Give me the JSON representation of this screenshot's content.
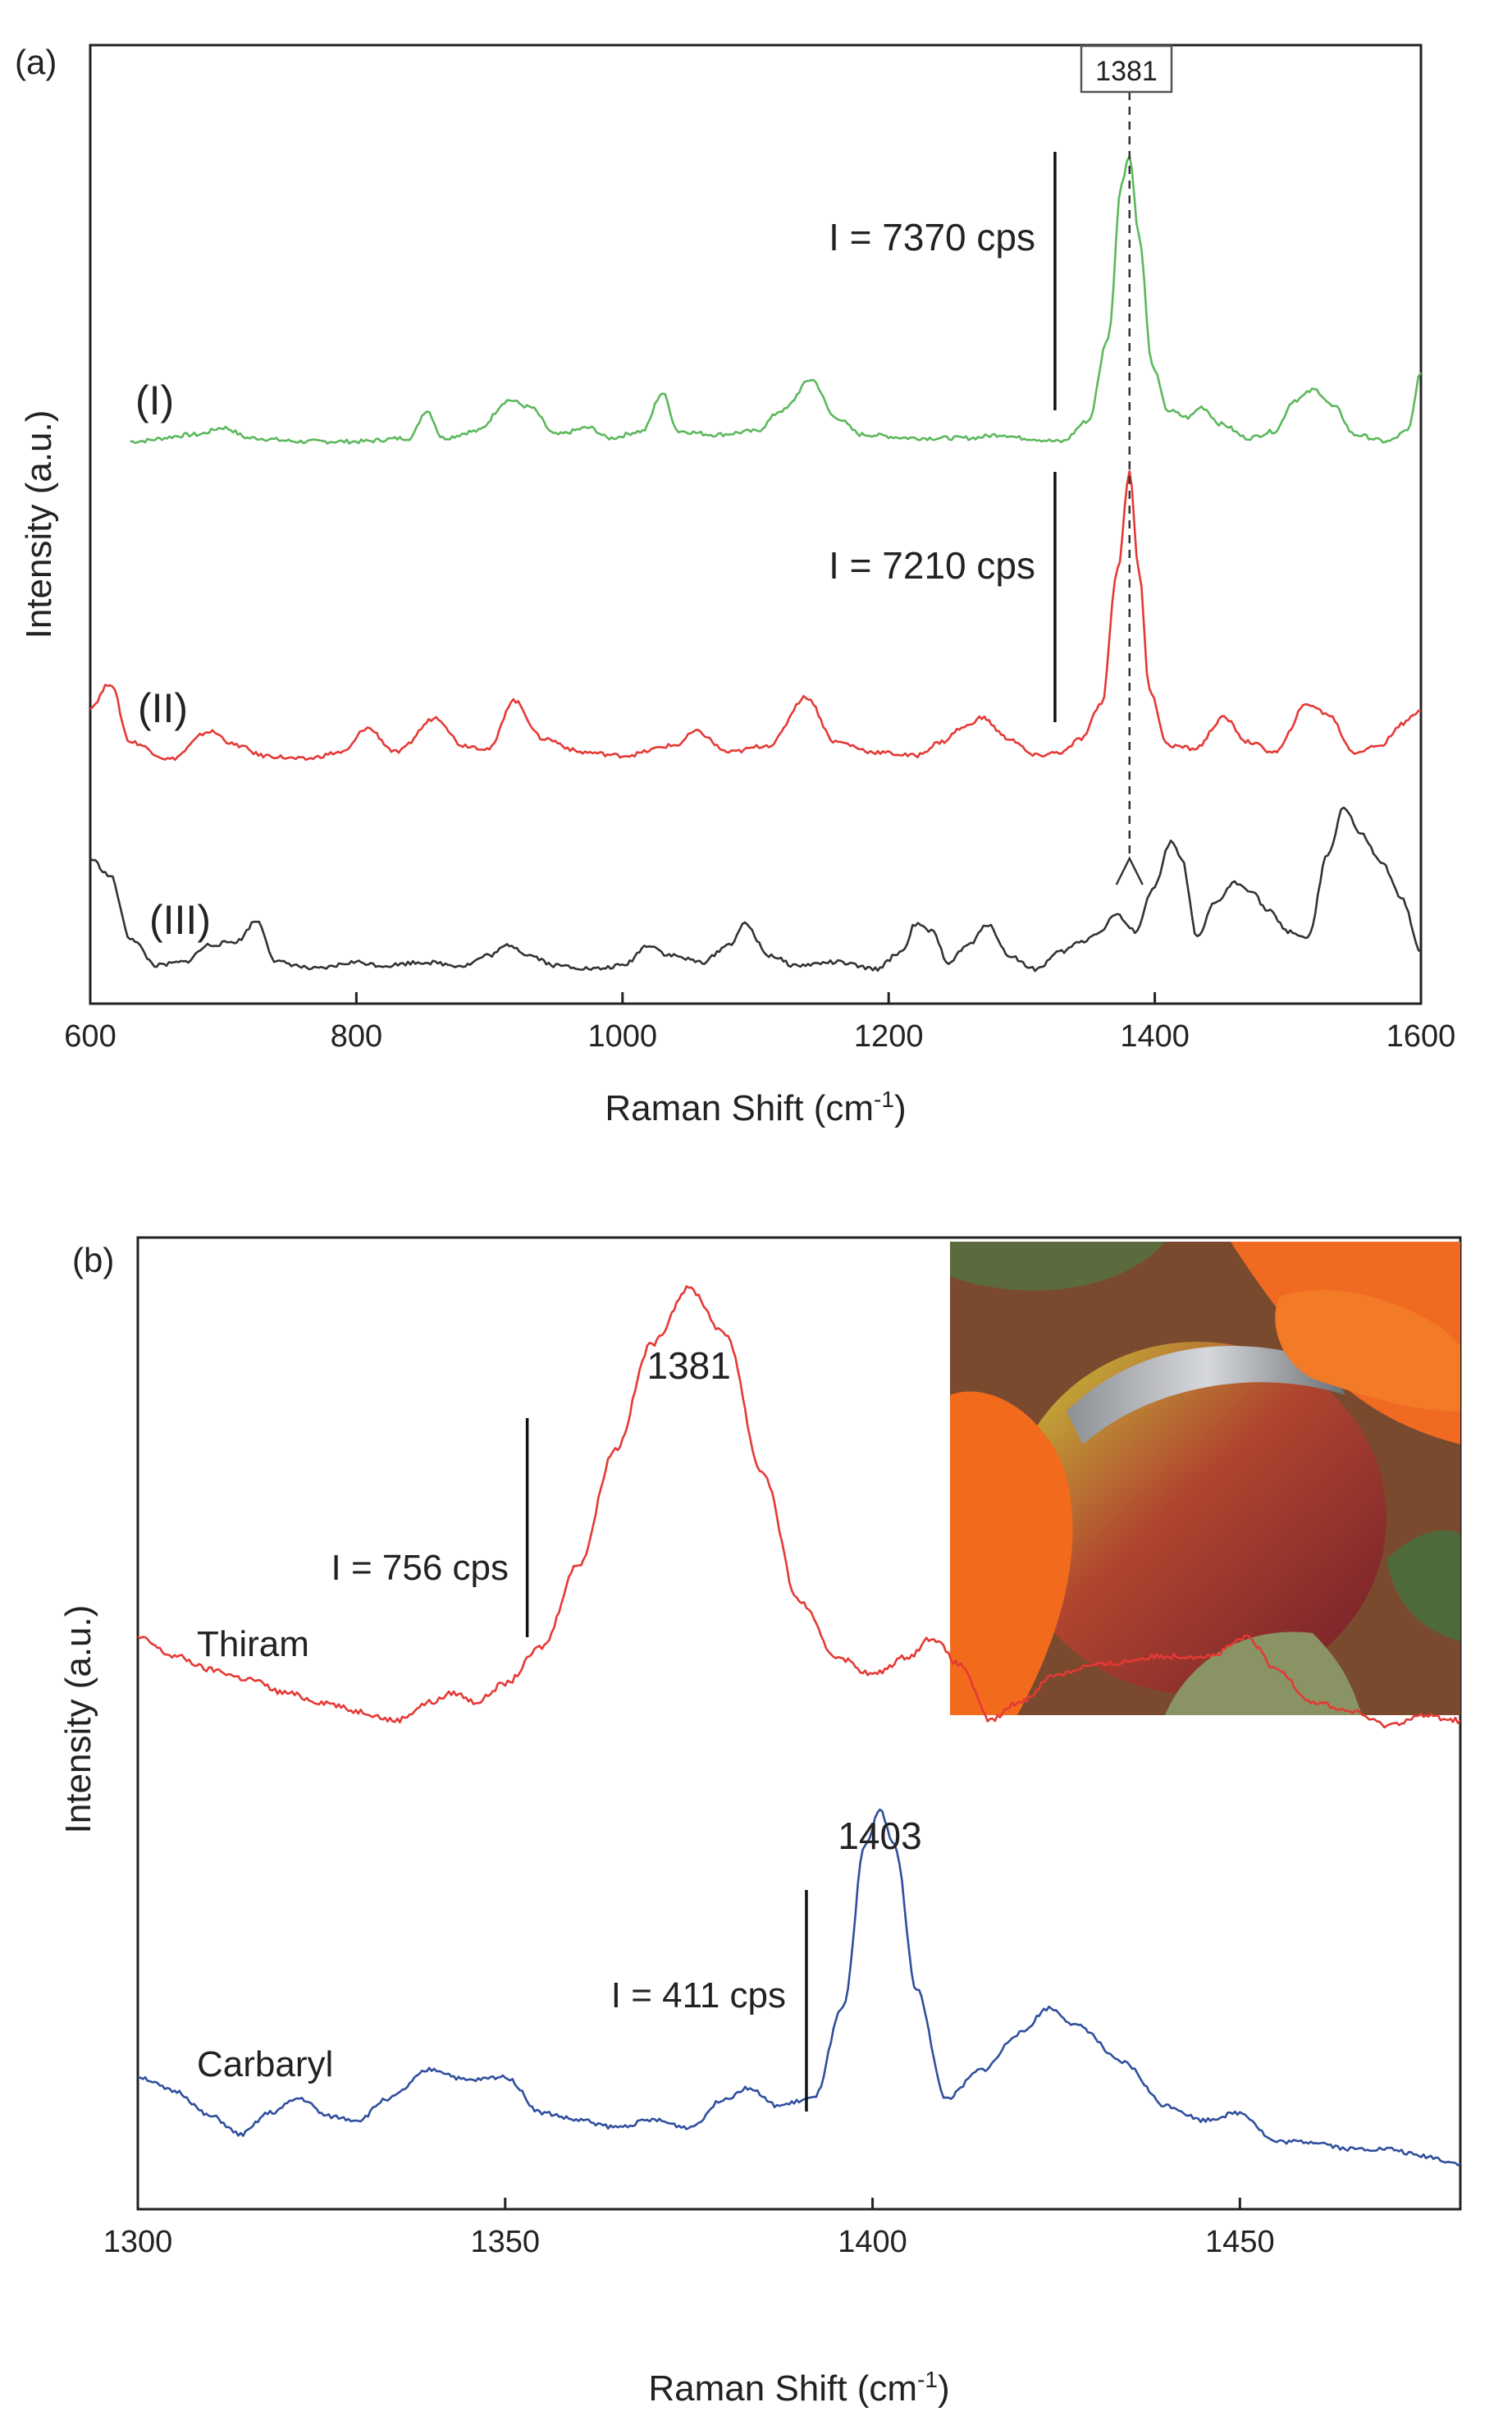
{
  "chart_data": [
    {
      "panel": "(a)",
      "type": "line",
      "xlabel": "Raman Shift (cm",
      "xlabel_sup": "-1",
      "xlabel_end": ")",
      "ylabel": "Intensity (a.u.)",
      "xlim": [
        600,
        1600
      ],
      "ticks": [
        "600",
        "800",
        "1000",
        "1200",
        "1400",
        "1600"
      ],
      "tick_values": [
        600,
        800,
        1000,
        1200,
        1400,
        1600
      ],
      "yticks_shown": false,
      "marker_label": "1381",
      "marker_x": 1381,
      "series": [
        {
          "name": "(I)",
          "color": "#5cb85c",
          "annotation": "I = 7370 cps",
          "bar_x": 1325,
          "bar_range": [
            0.08,
            1.0
          ],
          "points": [
            [
              630,
              0.0
            ],
            [
              680,
              0.02
            ],
            [
              700,
              0.04
            ],
            [
              720,
              0.01
            ],
            [
              760,
              0.0
            ],
            [
              800,
              0.0
            ],
            [
              840,
              0.01
            ],
            [
              853,
              0.09
            ],
            [
              865,
              0.01
            ],
            [
              890,
              0.03
            ],
            [
              915,
              0.12
            ],
            [
              930,
              0.1
            ],
            [
              950,
              0.02
            ],
            [
              975,
              0.04
            ],
            [
              990,
              0.01
            ],
            [
              1015,
              0.03
            ],
            [
              1030,
              0.14
            ],
            [
              1042,
              0.03
            ],
            [
              1070,
              0.02
            ],
            [
              1100,
              0.03
            ],
            [
              1120,
              0.09
            ],
            [
              1142,
              0.18
            ],
            [
              1160,
              0.07
            ],
            [
              1180,
              0.02
            ],
            [
              1220,
              0.01
            ],
            [
              1260,
              0.01
            ],
            [
              1285,
              0.02
            ],
            [
              1300,
              0.01
            ],
            [
              1330,
              0.0
            ],
            [
              1350,
              0.06
            ],
            [
              1365,
              0.3
            ],
            [
              1375,
              0.75
            ],
            [
              1381,
              0.83
            ],
            [
              1388,
              0.6
            ],
            [
              1398,
              0.22
            ],
            [
              1410,
              0.09
            ],
            [
              1425,
              0.07
            ],
            [
              1435,
              0.1
            ],
            [
              1450,
              0.05
            ],
            [
              1470,
              0.01
            ],
            [
              1490,
              0.03
            ],
            [
              1505,
              0.12
            ],
            [
              1520,
              0.15
            ],
            [
              1535,
              0.1
            ],
            [
              1550,
              0.02
            ],
            [
              1575,
              0.0
            ],
            [
              1590,
              0.03
            ],
            [
              1600,
              0.2
            ]
          ]
        },
        {
          "name": "(II)",
          "color": "#e53935",
          "annotation": "I = 7210 cps",
          "bar_x": 1325,
          "bar_range": [
            0.03,
            1.0
          ],
          "points": [
            [
              600,
              0.15
            ],
            [
              615,
              0.22
            ],
            [
              630,
              0.05
            ],
            [
              660,
              0.0
            ],
            [
              690,
              0.08
            ],
            [
              710,
              0.04
            ],
            [
              730,
              0.01
            ],
            [
              760,
              0.0
            ],
            [
              790,
              0.02
            ],
            [
              808,
              0.09
            ],
            [
              830,
              0.02
            ],
            [
              860,
              0.12
            ],
            [
              880,
              0.04
            ],
            [
              900,
              0.03
            ],
            [
              918,
              0.17
            ],
            [
              940,
              0.06
            ],
            [
              970,
              0.02
            ],
            [
              1000,
              0.01
            ],
            [
              1040,
              0.04
            ],
            [
              1055,
              0.08
            ],
            [
              1080,
              0.02
            ],
            [
              1110,
              0.04
            ],
            [
              1138,
              0.18
            ],
            [
              1160,
              0.05
            ],
            [
              1190,
              0.02
            ],
            [
              1220,
              0.01
            ],
            [
              1240,
              0.05
            ],
            [
              1255,
              0.09
            ],
            [
              1270,
              0.12
            ],
            [
              1290,
              0.06
            ],
            [
              1310,
              0.01
            ],
            [
              1330,
              0.02
            ],
            [
              1345,
              0.06
            ],
            [
              1360,
              0.16
            ],
            [
              1372,
              0.55
            ],
            [
              1381,
              0.83
            ],
            [
              1388,
              0.55
            ],
            [
              1396,
              0.2
            ],
            [
              1410,
              0.04
            ],
            [
              1430,
              0.03
            ],
            [
              1452,
              0.12
            ],
            [
              1470,
              0.05
            ],
            [
              1490,
              0.02
            ],
            [
              1515,
              0.16
            ],
            [
              1530,
              0.13
            ],
            [
              1550,
              0.02
            ],
            [
              1570,
              0.04
            ],
            [
              1585,
              0.1
            ],
            [
              1600,
              0.14
            ]
          ]
        },
        {
          "name": "(III)",
          "color": "#333333",
          "annotation": "",
          "bar_x": null,
          "bar_range": null,
          "points": [
            [
              600,
              0.33
            ],
            [
              615,
              0.28
            ],
            [
              630,
              0.1
            ],
            [
              650,
              0.02
            ],
            [
              670,
              0.03
            ],
            [
              690,
              0.08
            ],
            [
              710,
              0.09
            ],
            [
              725,
              0.15
            ],
            [
              740,
              0.03
            ],
            [
              770,
              0.01
            ],
            [
              800,
              0.03
            ],
            [
              820,
              0.02
            ],
            [
              850,
              0.03
            ],
            [
              880,
              0.02
            ],
            [
              900,
              0.05
            ],
            [
              915,
              0.08
            ],
            [
              930,
              0.05
            ],
            [
              950,
              0.02
            ],
            [
              980,
              0.01
            ],
            [
              1000,
              0.02
            ],
            [
              1020,
              0.08
            ],
            [
              1035,
              0.05
            ],
            [
              1060,
              0.03
            ],
            [
              1080,
              0.08
            ],
            [
              1092,
              0.14
            ],
            [
              1110,
              0.05
            ],
            [
              1130,
              0.02
            ],
            [
              1160,
              0.03
            ],
            [
              1190,
              0.01
            ],
            [
              1210,
              0.06
            ],
            [
              1220,
              0.14
            ],
            [
              1232,
              0.12
            ],
            [
              1245,
              0.03
            ],
            [
              1260,
              0.08
            ],
            [
              1275,
              0.14
            ],
            [
              1290,
              0.05
            ],
            [
              1310,
              0.01
            ],
            [
              1330,
              0.06
            ],
            [
              1345,
              0.09
            ],
            [
              1360,
              0.12
            ],
            [
              1370,
              0.17
            ],
            [
              1385,
              0.12
            ],
            [
              1400,
              0.25
            ],
            [
              1412,
              0.38
            ],
            [
              1420,
              0.33
            ],
            [
              1432,
              0.1
            ],
            [
              1445,
              0.2
            ],
            [
              1460,
              0.26
            ],
            [
              1472,
              0.24
            ],
            [
              1485,
              0.18
            ],
            [
              1500,
              0.12
            ],
            [
              1515,
              0.1
            ],
            [
              1530,
              0.34
            ],
            [
              1542,
              0.48
            ],
            [
              1555,
              0.4
            ],
            [
              1570,
              0.32
            ],
            [
              1585,
              0.22
            ],
            [
              1600,
              0.06
            ]
          ]
        }
      ]
    },
    {
      "panel": "(b)",
      "type": "line",
      "xlabel": "Raman Shift (cm",
      "xlabel_sup": "-1",
      "xlabel_end": ")",
      "ylabel": "Intensity (a.u.)",
      "xlim": [
        1300,
        1480
      ],
      "ticks": [
        "1300",
        "1350",
        "1400",
        "1450"
      ],
      "tick_values": [
        1300,
        1350,
        1400,
        1450
      ],
      "yticks_shown": false,
      "inset": "photo of orange-gloved hands pressing a metal substrate against an apple",
      "series": [
        {
          "name": "Thiram",
          "color": "#e53935",
          "peak_label": "1381",
          "peak_x": 1375,
          "annotation": "I = 756 cps",
          "bar_x": 1353,
          "bar_range": [
            0.23,
            1.0
          ],
          "points": [
            [
              1300,
              0.24
            ],
            [
              1305,
              0.2
            ],
            [
              1310,
              0.17
            ],
            [
              1315,
              0.15
            ],
            [
              1320,
              0.12
            ],
            [
              1325,
              0.1
            ],
            [
              1330,
              0.08
            ],
            [
              1335,
              0.06
            ],
            [
              1340,
              0.1
            ],
            [
              1343,
              0.12
            ],
            [
              1346,
              0.1
            ],
            [
              1350,
              0.14
            ],
            [
              1355,
              0.22
            ],
            [
              1360,
              0.4
            ],
            [
              1365,
              0.65
            ],
            [
              1370,
              0.88
            ],
            [
              1375,
              1.0
            ],
            [
              1380,
              0.9
            ],
            [
              1385,
              0.6
            ],
            [
              1390,
              0.32
            ],
            [
              1395,
              0.2
            ],
            [
              1400,
              0.16
            ],
            [
              1405,
              0.2
            ],
            [
              1408,
              0.24
            ],
            [
              1412,
              0.18
            ],
            [
              1416,
              0.06
            ],
            [
              1420,
              0.1
            ],
            [
              1425,
              0.16
            ],
            [
              1430,
              0.18
            ],
            [
              1440,
              0.2
            ],
            [
              1446,
              0.2
            ],
            [
              1451,
              0.24
            ],
            [
              1455,
              0.17
            ],
            [
              1460,
              0.1
            ],
            [
              1465,
              0.08
            ],
            [
              1470,
              0.05
            ],
            [
              1475,
              0.07
            ],
            [
              1480,
              0.06
            ]
          ]
        },
        {
          "name": "Carbaryl",
          "color": "#2f4f9e",
          "peak_label": "1403",
          "peak_x": 1401,
          "annotation": "I = 411 cps",
          "bar_x": 1391,
          "bar_range": [
            0.08,
            1.0
          ],
          "points": [
            [
              1300,
              0.26
            ],
            [
              1305,
              0.22
            ],
            [
              1310,
              0.15
            ],
            [
              1314,
              0.1
            ],
            [
              1318,
              0.16
            ],
            [
              1322,
              0.2
            ],
            [
              1326,
              0.15
            ],
            [
              1330,
              0.14
            ],
            [
              1334,
              0.2
            ],
            [
              1340,
              0.28
            ],
            [
              1345,
              0.25
            ],
            [
              1350,
              0.26
            ],
            [
              1355,
              0.16
            ],
            [
              1360,
              0.14
            ],
            [
              1365,
              0.12
            ],
            [
              1370,
              0.14
            ],
            [
              1375,
              0.12
            ],
            [
              1380,
              0.2
            ],
            [
              1383,
              0.23
            ],
            [
              1387,
              0.18
            ],
            [
              1392,
              0.2
            ],
            [
              1396,
              0.45
            ],
            [
              1399,
              0.9
            ],
            [
              1401,
              1.0
            ],
            [
              1403,
              0.9
            ],
            [
              1406,
              0.5
            ],
            [
              1410,
              0.2
            ],
            [
              1415,
              0.28
            ],
            [
              1420,
              0.38
            ],
            [
              1424,
              0.45
            ],
            [
              1428,
              0.4
            ],
            [
              1434,
              0.3
            ],
            [
              1440,
              0.18
            ],
            [
              1445,
              0.14
            ],
            [
              1450,
              0.16
            ],
            [
              1455,
              0.08
            ],
            [
              1460,
              0.08
            ],
            [
              1465,
              0.06
            ],
            [
              1470,
              0.06
            ],
            [
              1475,
              0.04
            ],
            [
              1480,
              0.02
            ]
          ]
        }
      ]
    }
  ]
}
